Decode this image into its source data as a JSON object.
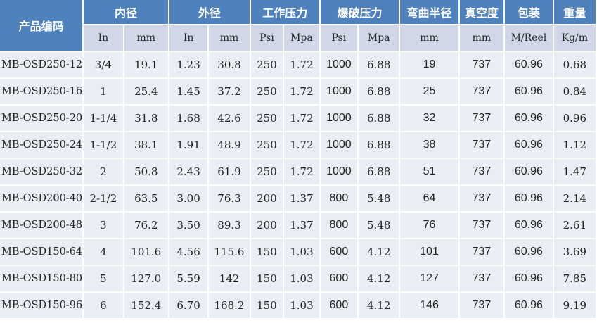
{
  "header": {
    "product_code": "产品编码",
    "inner_diameter": "内径",
    "outer_diameter": "外径",
    "working_pressure": "工作压力",
    "burst_pressure": "爆破压力",
    "bend_radius": "弯曲半径",
    "vacuum": "真空度",
    "packing": "包装",
    "weight": "重量"
  },
  "units": [
    "In",
    "mm",
    "In",
    "mm",
    "Psi",
    "Mpa",
    "Psi",
    "Mpa",
    "mm",
    "mm",
    "M/Reel",
    "Kg/m"
  ],
  "colors": {
    "header_bg": "#4f81bd",
    "subheader_bg": "#d0d8e8",
    "row_bg": "#e9edf4"
  },
  "rows": [
    [
      "MB-OSD250-12",
      "3/4",
      "19.1",
      "1.23",
      "30.8",
      "250",
      "1.72",
      "1000",
      "6.88",
      "19",
      "737",
      "60.96",
      "0.68"
    ],
    [
      "MB-OSD250-16",
      "1",
      "25.4",
      "1.45",
      "37.2",
      "250",
      "1.72",
      "1000",
      "6.88",
      "25",
      "737",
      "60.96",
      "0.84"
    ],
    [
      "MB-OSD250-20",
      "1-1/4",
      "31.8",
      "1.68",
      "42.6",
      "250",
      "1.72",
      "1000",
      "6.88",
      "32",
      "737",
      "60.96",
      "0.96"
    ],
    [
      "MB-OSD250-24",
      "1-1/2",
      "38.1",
      "1.91",
      "48.9",
      "250",
      "1.72",
      "1000",
      "6.88",
      "38",
      "737",
      "60.96",
      "1.12"
    ],
    [
      "MB-OSD250-32",
      "2",
      "50.8",
      "2.43",
      "61.9",
      "250",
      "1.72",
      "1000",
      "6.88",
      "51",
      "737",
      "60.96",
      "1.47"
    ],
    [
      "MB-OSD200-40",
      "2-1/2",
      "63.5",
      "3.00",
      "76.3",
      "200",
      "1.37",
      "800",
      "5.48",
      "64",
      "737",
      "60.96",
      "2.14"
    ],
    [
      "MB-OSD200-48",
      "3",
      "76.2",
      "3.50",
      "89.3",
      "200",
      "1.37",
      "800",
      "5.48",
      "76",
      "737",
      "60.96",
      "2.61"
    ],
    [
      "MB-OSD150-64",
      "4",
      "101.6",
      "4.56",
      "115.6",
      "150",
      "1.03",
      "600",
      "4.12",
      "101",
      "737",
      "60.96",
      "3.69"
    ],
    [
      "MB-OSD150-80",
      "5",
      "127.0",
      "5.59",
      "142",
      "150",
      "1.03",
      "600",
      "4.12",
      "127",
      "737",
      "60.96",
      "7.85"
    ],
    [
      "MB-OSD150-96",
      "6",
      "152.4",
      "6.70",
      "168.2",
      "150",
      "1.03",
      "600",
      "4.12",
      "146",
      "737",
      "60.96",
      "9.19"
    ]
  ]
}
